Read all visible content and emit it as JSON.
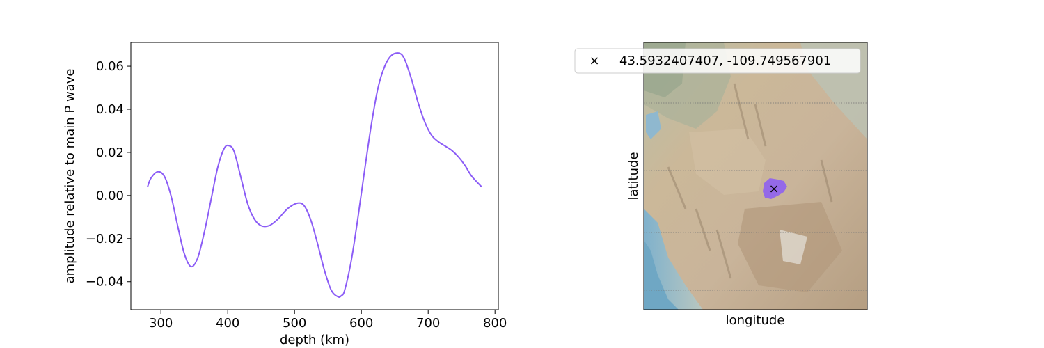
{
  "chart_data": [
    {
      "type": "line",
      "title": "",
      "xlabel": "depth (km)",
      "ylabel": "amplitude relative to main P wave",
      "xlim": [
        255,
        805
      ],
      "ylim": [
        -0.053,
        0.071
      ],
      "xticks": [
        300,
        400,
        500,
        600,
        700,
        800
      ],
      "yticks": [
        -0.04,
        -0.02,
        0.0,
        0.02,
        0.04,
        0.06
      ],
      "xtick_labels": [
        "300",
        "400",
        "500",
        "600",
        "700",
        "800"
      ],
      "ytick_labels": [
        "−0.04",
        "−0.02",
        "0.00",
        "0.02",
        "0.04",
        "0.06"
      ],
      "grid": false,
      "series": [
        {
          "color": "#8b5cf6",
          "x": [
            280,
            285,
            295,
            305,
            315,
            325,
            335,
            345,
            355,
            365,
            375,
            385,
            395,
            403,
            410,
            420,
            430,
            440,
            450,
            462,
            475,
            490,
            505,
            515,
            525,
            535,
            545,
            555,
            565,
            570,
            575,
            585,
            595,
            605,
            615,
            625,
            635,
            645,
            657,
            665,
            675,
            685,
            695,
            705,
            715,
            725,
            735,
            745,
            755,
            765,
            780
          ],
          "y": [
            0.004,
            0.008,
            0.011,
            0.009,
            0.0,
            -0.014,
            -0.027,
            -0.033,
            -0.029,
            -0.017,
            -0.002,
            0.013,
            0.022,
            0.023,
            0.02,
            0.008,
            -0.004,
            -0.011,
            -0.014,
            -0.014,
            -0.011,
            -0.006,
            -0.0035,
            -0.005,
            -0.012,
            -0.023,
            -0.035,
            -0.044,
            -0.047,
            -0.0465,
            -0.044,
            -0.03,
            -0.01,
            0.012,
            0.033,
            0.05,
            0.06,
            0.065,
            0.066,
            0.063,
            0.054,
            0.043,
            0.034,
            0.028,
            0.025,
            0.023,
            0.021,
            0.018,
            0.014,
            0.009,
            0.004
          ]
        }
      ]
    },
    {
      "type": "map",
      "title": "",
      "xlabel": "longitude",
      "ylabel": "latitude",
      "legend": {
        "placement": "top-left",
        "marker": "×",
        "label": "43.5932407407, -109.749567901"
      },
      "point": {
        "lat": 43.5932407407,
        "lon": -109.749567901
      },
      "colors": {
        "highlight": "#8b5cf6",
        "terrain_low": "#c9b79a",
        "terrain_high": "#a58e72",
        "water": "#6fa7c4"
      }
    }
  ]
}
